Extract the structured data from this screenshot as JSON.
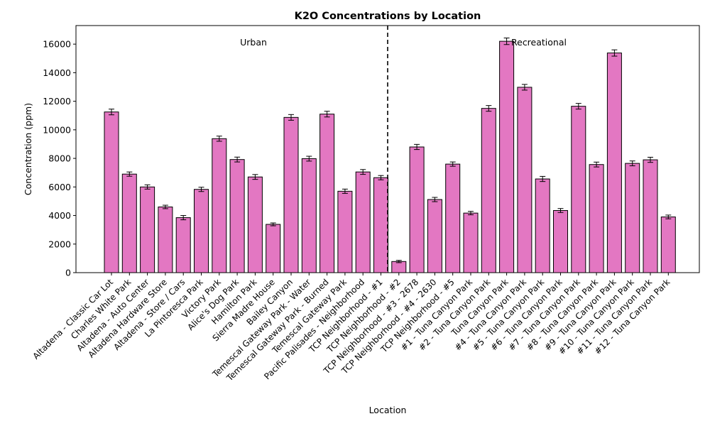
{
  "chart_data": {
    "type": "bar",
    "title": "K2O Concentrations by Location",
    "xlabel": "Location",
    "ylabel": "Concentration (ppm)",
    "ylim": [
      0,
      17300
    ],
    "yticks": [
      0,
      2000,
      4000,
      6000,
      8000,
      10000,
      12000,
      14000,
      16000
    ],
    "grid": false,
    "bar_color": "#e377c2",
    "edge_color": "#000000",
    "regions": [
      {
        "label": "Urban"
      },
      {
        "label": "Recreational"
      }
    ],
    "categories": [
      "Altadena - Classic Car Lot",
      "Charles White Park",
      "Altadena - Auto Center",
      "Altadena Hardware Store",
      "Altadena - Store / Cars",
      "La Pintoresca Park",
      "Victory Park",
      "Alice's Dog Park",
      "Hamilton Park",
      "Sierra Madre House",
      "Bailey Canyon",
      "Temescal Gateway Park - Water",
      "Temescal Gateway Park - Burned",
      "Temescal Gateway Park",
      "Pacific Palisades - Neighborhood",
      "TCP Neighborhood - #1",
      "TCP Neighborhood - #2",
      "TCP Neighborhood - #3 - 2678",
      "TCP Neighborhood - #4 - 2630",
      "TCP Neighborhood - #5",
      "#1 - Tuna Canyon Park",
      "#2 - Tuna Canyon Park",
      "Tuna Canyon Park",
      "#4 - Tuna Canyon Park",
      "#5 - Tuna Canyon Park",
      "#6 - Tuna Canyon Park",
      "#7 - Tuna Canyon Park",
      "#8 - Tuna Canyon Park",
      "#9 - Tuna Canyon Park",
      "#10 - Tuna Canyon Park",
      "#11 - Tuna Canyon Park",
      "#12 - Tuna Canyon Park"
    ],
    "values": [
      11250,
      6900,
      6000,
      4600,
      3850,
      5830,
      9380,
      7920,
      6700,
      3380,
      10870,
      7980,
      11100,
      5700,
      7050,
      6650,
      780,
      8800,
      5120,
      7600,
      4170,
      11500,
      16200,
      12980,
      6560,
      4350,
      11650,
      7570,
      15380,
      7650,
      7900,
      3900
    ],
    "errors": [
      200,
      150,
      150,
      120,
      150,
      150,
      180,
      170,
      170,
      100,
      200,
      170,
      200,
      150,
      170,
      150,
      80,
      180,
      150,
      150,
      120,
      200,
      230,
      200,
      180,
      140,
      200,
      170,
      220,
      170,
      180,
      130
    ]
  }
}
